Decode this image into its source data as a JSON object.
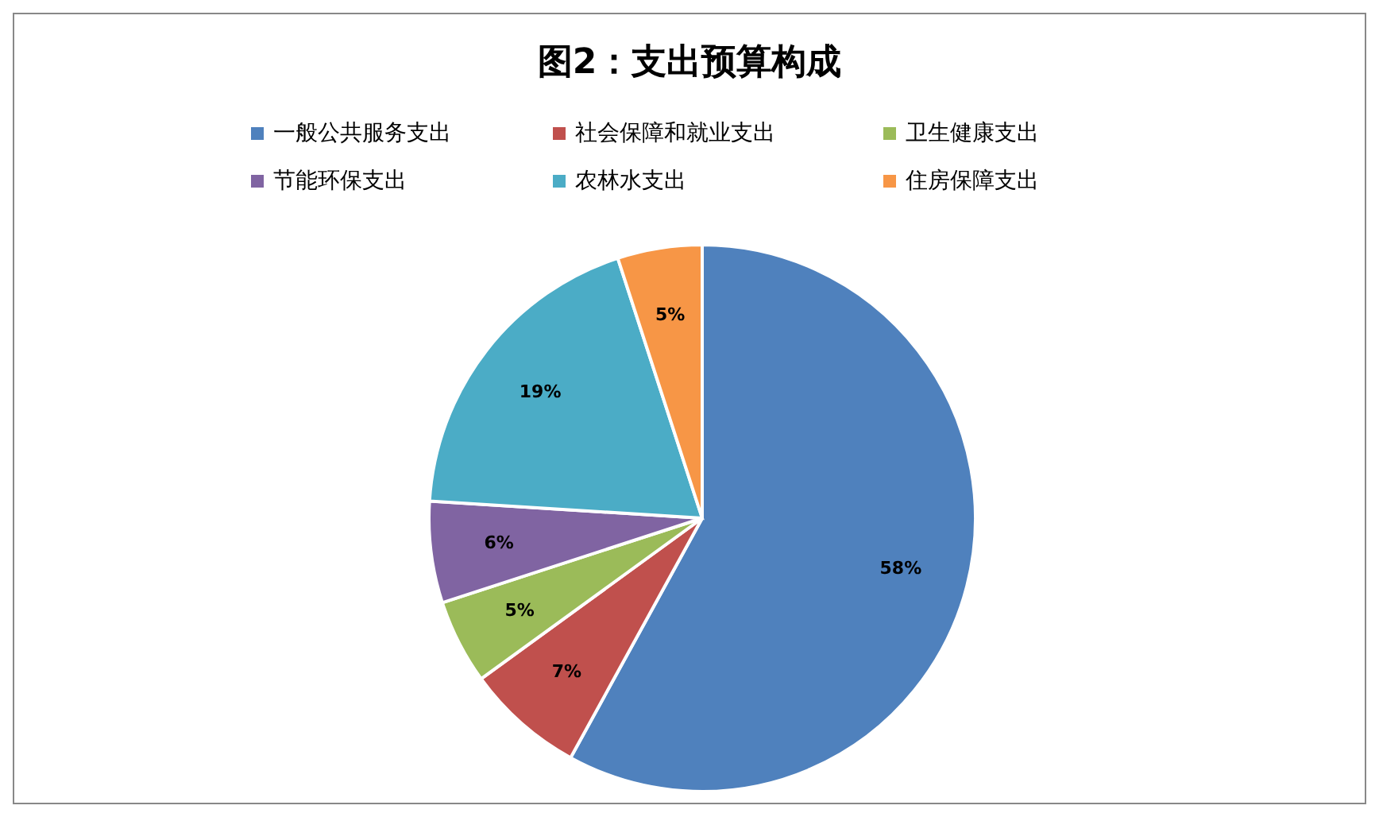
{
  "chart_data": {
    "type": "pie",
    "title": "图2：支出预算构成",
    "categories": [
      "一般公共服务支出",
      "社会保障和就业支出",
      "卫生健康支出",
      "节能环保支出",
      "农林水支出",
      "住房保障支出"
    ],
    "values": [
      58,
      7,
      5,
      6,
      19,
      5
    ],
    "colors": [
      "#4f81bd",
      "#c0504d",
      "#9bbb59",
      "#8064a2",
      "#4bacc6",
      "#f79646"
    ],
    "value_labels": [
      "58%",
      "7%",
      "5%",
      "6%",
      "19%",
      "5%"
    ],
    "legend": "top"
  }
}
